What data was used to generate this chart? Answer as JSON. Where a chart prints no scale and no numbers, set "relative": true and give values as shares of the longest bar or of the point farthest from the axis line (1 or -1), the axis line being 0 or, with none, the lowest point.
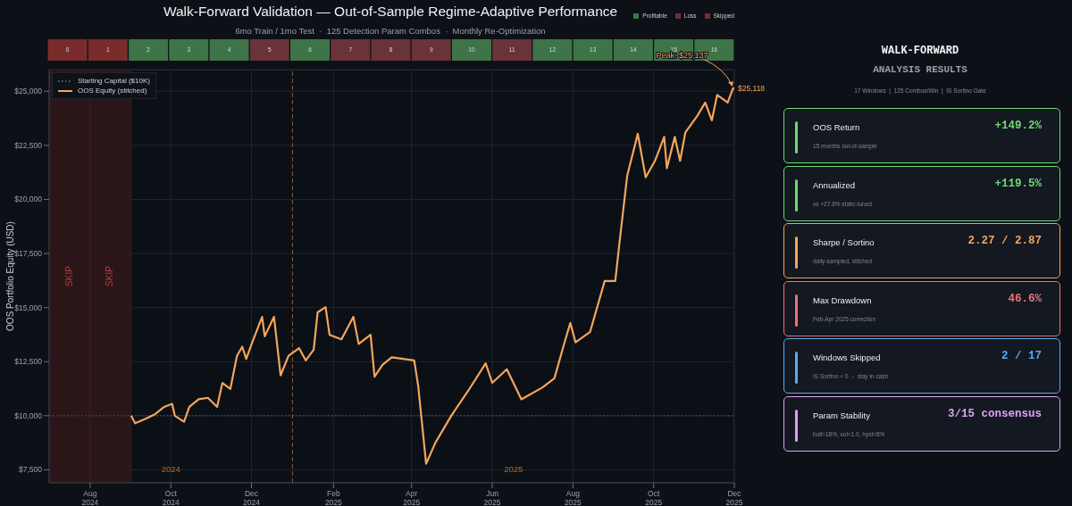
{
  "chart_data": [
    {
      "type": "bar",
      "title": "Walk-Forward Validation — Out-of-Sample Regime-Adaptive Performance",
      "subtitle": "6mo Train / 1mo Test  ·  125 Detection Param Combos  ·  Monthly Re-Optimization",
      "categories": [
        "0",
        "1",
        "2",
        "3",
        "4",
        "5",
        "6",
        "7",
        "8",
        "9",
        "10",
        "11",
        "12",
        "13",
        "14",
        "15",
        "16"
      ],
      "relative": true,
      "stacked": true,
      "series": [
        {
          "name": "Profitable",
          "color": "#3e7447",
          "values": [
            null,
            null,
            1,
            1,
            1,
            null,
            1,
            null,
            null,
            null,
            1,
            null,
            1,
            1,
            1,
            1,
            1
          ]
        },
        {
          "name": "Loss",
          "color": "#6a3239",
          "values": [
            null,
            null,
            null,
            null,
            null,
            1,
            null,
            1,
            1,
            1,
            null,
            1,
            null,
            null,
            null,
            null,
            null
          ]
        },
        {
          "name": "Skipped",
          "color": "#7a2c2c",
          "values": [
            1,
            1,
            null,
            null,
            null,
            null,
            null,
            null,
            null,
            null,
            null,
            null,
            null,
            null,
            null,
            null,
            null
          ]
        }
      ],
      "legend": "top right"
    },
    {
      "type": "line",
      "ylabel": "OOS Portfolio Equity (USD)",
      "x": [
        "2024-09-01",
        "2024-09-04",
        "2024-09-12",
        "2024-09-19",
        "2024-09-26",
        "2024-10-02",
        "2024-10-04",
        "2024-10-11",
        "2024-10-15",
        "2024-10-22",
        "2024-10-29",
        "2024-11-05",
        "2024-11-09",
        "2024-11-15",
        "2024-11-20",
        "2024-11-24",
        "2024-11-27",
        "2024-12-02",
        "2024-12-09",
        "2024-12-11",
        "2024-12-18",
        "2024-12-23",
        "2024-12-29",
        "2025-01-06",
        "2025-01-11",
        "2025-01-17",
        "2025-01-20",
        "2025-01-26",
        "2025-01-29",
        "2025-02-07",
        "2025-02-16",
        "2025-02-20",
        "2025-03-01",
        "2025-03-04",
        "2025-03-10",
        "2025-03-17",
        "2025-04-03",
        "2025-04-06",
        "2025-04-12",
        "2025-04-19",
        "2025-05-01",
        "2025-05-14",
        "2025-05-27",
        "2025-06-01",
        "2025-06-12",
        "2025-06-23",
        "2025-07-09",
        "2025-07-18",
        "2025-07-25",
        "2025-07-30",
        "2025-08-03",
        "2025-08-14",
        "2025-08-25",
        "2025-09-02",
        "2025-09-05",
        "2025-09-11",
        "2025-09-19",
        "2025-09-25",
        "2025-10-02",
        "2025-10-09",
        "2025-10-11",
        "2025-10-17",
        "2025-10-21",
        "2025-10-25",
        "2025-11-03",
        "2025-11-09",
        "2025-11-14",
        "2025-11-18",
        "2025-11-26",
        "2025-11-30",
        "2025-12-01"
      ],
      "series": [
        {
          "name": "OOS Equity (stitched)",
          "color": "#f5a55a",
          "values": [
            10000,
            9650,
            9860,
            10070,
            10410,
            10550,
            10000,
            9720,
            10410,
            10760,
            10830,
            10410,
            11520,
            11240,
            12770,
            13190,
            12630,
            13460,
            14570,
            13670,
            14570,
            11870,
            12770,
            13120,
            12560,
            13050,
            14780,
            15020,
            13740,
            13530,
            14570,
            13320,
            13740,
            11800,
            12350,
            12700,
            12560,
            11380,
            7780,
            8750,
            10000,
            11170,
            12420,
            11520,
            12150,
            10760,
            11310,
            11730,
            13250,
            14290,
            13390,
            13880,
            16230,
            16230,
            17900,
            21090,
            23030,
            21020,
            21780,
            22890,
            21440,
            22890,
            21780,
            23100,
            23860,
            24480,
            23650,
            24830,
            24480,
            25137,
            25118
          ]
        }
      ],
      "xlim": [
        "2024-07-01",
        "2025-12-01"
      ],
      "xticks": [
        {
          "value": "2024-08-01",
          "label": "Aug\n2024"
        },
        {
          "value": "2024-10-01",
          "label": "Oct\n2024"
        },
        {
          "value": "2024-12-01",
          "label": "Dec\n2024"
        },
        {
          "value": "2025-02-01",
          "label": "Feb\n2025"
        },
        {
          "value": "2025-04-01",
          "label": "Apr\n2025"
        },
        {
          "value": "2025-06-01",
          "label": "Jun\n2025"
        },
        {
          "value": "2025-08-01",
          "label": "Aug\n2025"
        },
        {
          "value": "2025-10-01",
          "label": "Oct\n2025"
        },
        {
          "value": "2025-12-01",
          "label": "Dec\n2025"
        }
      ],
      "ylim": [
        6900,
        26000
      ],
      "yticks": [
        {
          "value": 7500,
          "label": "$7,500"
        },
        {
          "value": 10000,
          "label": "$10,000"
        },
        {
          "value": 12500,
          "label": "$12,500"
        },
        {
          "value": 15000,
          "label": "$15,000"
        },
        {
          "value": 17500,
          "label": "$17,500"
        },
        {
          "value": 20000,
          "label": "$20,000"
        },
        {
          "value": 22500,
          "label": "$22,500"
        },
        {
          "value": 25000,
          "label": "$25,000"
        }
      ],
      "grid": true,
      "legend": "top left",
      "line_style": "solid",
      "ref_lines": [
        {
          "axis": "y",
          "value": 10000,
          "label": "Starting Capital ($10K)",
          "color": "#5a5f66",
          "line_style": "dotted"
        },
        {
          "axis": "x",
          "value": "2025-01-01",
          "color": "#8a5a3a",
          "line_style": "dashed"
        }
      ],
      "bands": [
        {
          "axis": "x",
          "from": "2024-07-01",
          "to": "2024-08-01",
          "label": "SKIP",
          "color": "#2a1619"
        },
        {
          "axis": "x",
          "from": "2024-08-01",
          "to": "2024-09-01",
          "label": "SKIP",
          "color": "#2a1619"
        }
      ],
      "annotations": [
        {
          "text": "Peak: $25,137",
          "x": "2025-11-30",
          "y": 25137
        },
        {
          "text": "$25,118",
          "x": "2025-12-01",
          "y": 25118
        },
        "2024",
        "2025"
      ]
    },
    {
      "type": "other",
      "title": "WALK-FORWARD",
      "subtitle": "ANALYSIS RESULTS",
      "categories": [
        "OOS Return",
        "Annualized",
        "Sharpe / Sortino",
        "Max Drawdown",
        "Windows Skipped",
        "Param Stability"
      ],
      "value_labels": [
        "+149.2%",
        "+119.5%",
        "2.27 / 2.87",
        "46.6%",
        "2 / 17",
        "3/15 consensus"
      ],
      "colors": [
        "#6fd873",
        "#6fd873",
        "#f5a55a",
        "#f0717b",
        "#5aaaf2",
        "#dca2f5"
      ],
      "annotations": [
        "17 Windows  |  125 Combos/Win  |  IS Sortino Gate",
        "15 months out-of-sample",
        "vs +27.6% static-tuned",
        "daily-sampled, stitched",
        "Feb-Apr 2025 correction",
        "IS Sortino < 0 → stay in cash",
        "bull=18%, vol=1.0, hyst=8%"
      ]
    }
  ]
}
